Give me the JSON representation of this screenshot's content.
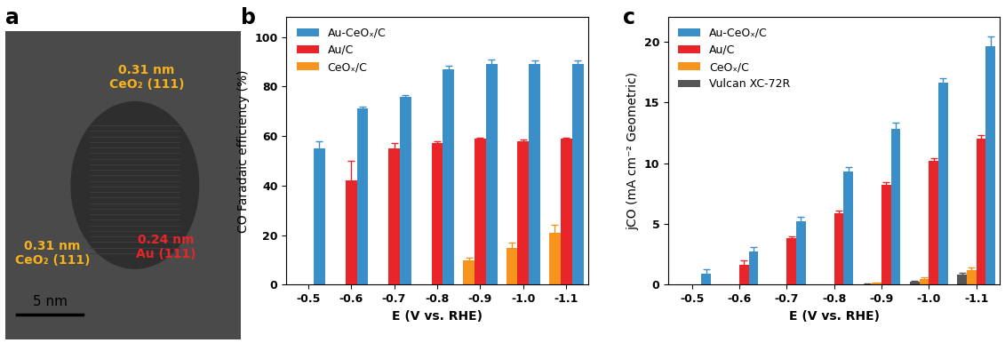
{
  "image": {
    "panel": "a",
    "annotations": [
      {
        "lines": [
          "0.31 nm",
          "CeO₂ (111)"
        ],
        "color": "#f5b21b"
      },
      {
        "lines": [
          "0.31 nm",
          "CeO₂ (111)"
        ],
        "color": "#f5b21b"
      },
      {
        "lines": [
          "0.24 nm",
          "Au (111)"
        ],
        "color": "#e8262a"
      }
    ],
    "scale_bar": "5 nm"
  },
  "chart_data": [
    {
      "type": "bar",
      "panel": "b",
      "categories": [
        "-0.5",
        "-0.6",
        "-0.7",
        "-0.8",
        "-0.9",
        "-1.0",
        "-1.1"
      ],
      "x_label": "E (V vs. RHE)",
      "y_label": "CO Faradaic efficiency (%)",
      "ylim": [
        0,
        108
      ],
      "yticks": [
        0,
        20,
        40,
        60,
        80,
        100
      ],
      "legend": "upper left",
      "series": [
        {
          "name": "Au-CeOₓ/C",
          "color": "#3a8fc8",
          "values": [
            55,
            71,
            76,
            87,
            89,
            89,
            89
          ],
          "errors": [
            3,
            1,
            0.5,
            1.5,
            2,
            1.5,
            1.5
          ]
        },
        {
          "name": "Au/C",
          "color": "#e8262a",
          "values": [
            null,
            42,
            55,
            57,
            59,
            58,
            59
          ],
          "errors": [
            null,
            8,
            2,
            1,
            0.5,
            0.5,
            0.5
          ]
        },
        {
          "name": "CeOₓ/C",
          "color": "#f7941d",
          "values": [
            null,
            null,
            null,
            null,
            10,
            15,
            21
          ],
          "errors": [
            null,
            null,
            null,
            null,
            1,
            2,
            3
          ]
        }
      ]
    },
    {
      "type": "bar",
      "panel": "c",
      "categories": [
        "-0.5",
        "-0.6",
        "-0.7",
        "-0.8",
        "-0.9",
        "-1.0",
        "-1.1"
      ],
      "x_label": "E (V vs. RHE)",
      "y_label": "jCO (mA cm⁻² Geometric)",
      "ylim": [
        0,
        22
      ],
      "yticks": [
        0,
        5,
        10,
        15,
        20
      ],
      "legend": "upper left",
      "series": [
        {
          "name": "Au-CeOₓ/C",
          "color": "#3a8fc8",
          "values": [
            0.9,
            2.7,
            5.2,
            9.3,
            12.8,
            16.6,
            19.6
          ],
          "errors": [
            0.4,
            0.4,
            0.4,
            0.4,
            0.5,
            0.4,
            0.8
          ]
        },
        {
          "name": "Au/C",
          "color": "#e8262a",
          "values": [
            null,
            1.6,
            3.8,
            5.9,
            8.2,
            10.2,
            12.0
          ],
          "errors": [
            null,
            0.4,
            0.2,
            0.2,
            0.2,
            0.2,
            0.3
          ]
        },
        {
          "name": "CeOₓ/C",
          "color": "#f7941d",
          "values": [
            null,
            null,
            null,
            null,
            0.15,
            0.5,
            1.2
          ],
          "errors": [
            null,
            null,
            null,
            null,
            0.05,
            0.1,
            0.2
          ]
        },
        {
          "name": "Vulcan XC-72R",
          "color": "#555555",
          "values": [
            null,
            null,
            null,
            null,
            0.05,
            0.25,
            0.8
          ],
          "errors": [
            null,
            null,
            null,
            null,
            0.02,
            0.1,
            0.2
          ]
        }
      ]
    }
  ]
}
